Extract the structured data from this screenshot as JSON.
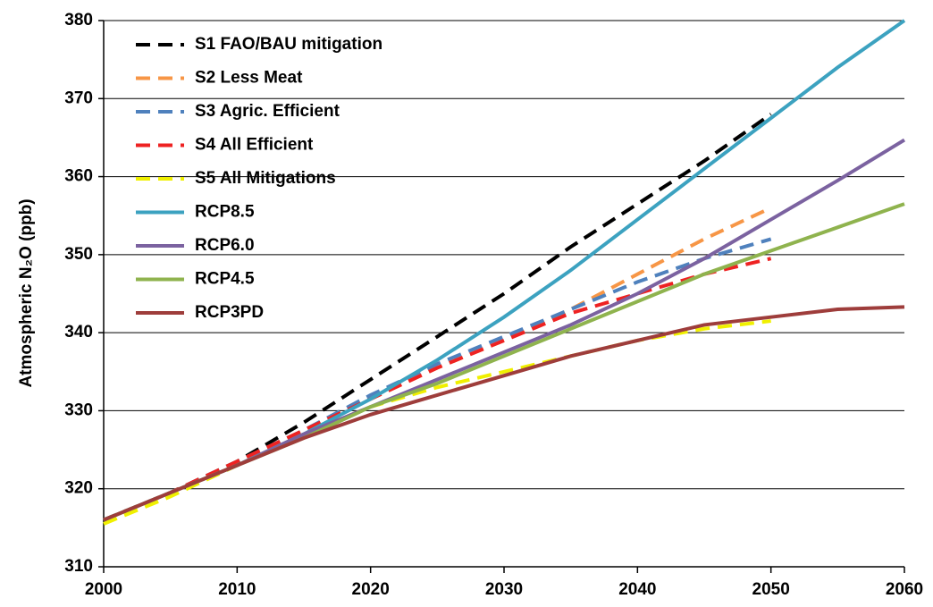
{
  "chart_data": {
    "type": "line",
    "y_label": "Atmospheric N₂O (ppb)",
    "x": [
      2000,
      2005,
      2010,
      2015,
      2020,
      2025,
      2030,
      2035,
      2040,
      2045,
      2050,
      2055,
      2060
    ],
    "xlim": [
      2000,
      2060
    ],
    "xticks": [
      2000,
      2010,
      2020,
      2030,
      2040,
      2050,
      2060
    ],
    "ylim": [
      310,
      380
    ],
    "yticks": [
      310,
      320,
      330,
      340,
      350,
      360,
      370,
      380
    ],
    "grid": true,
    "legend": "upper left",
    "series": [
      {
        "name": "S1 FAO/BAU mitigation",
        "color": "#000000",
        "dashed": true,
        "values": [
          316,
          319.5,
          323.5,
          328.5,
          334,
          339.5,
          345,
          351,
          356.5,
          362,
          368,
          null,
          null
        ]
      },
      {
        "name": "S2 Less Meat",
        "color": "#f79646",
        "dashed": true,
        "values": [
          316,
          319.5,
          323.5,
          327.5,
          331.5,
          335.5,
          339,
          343,
          347.5,
          352,
          356,
          null,
          null
        ]
      },
      {
        "name": "S3 Agric. Efficient",
        "color": "#4f81bd",
        "dashed": true,
        "values": [
          316,
          319.5,
          323.5,
          327.5,
          332,
          336,
          339.5,
          343,
          346.5,
          349.5,
          352,
          null,
          null
        ]
      },
      {
        "name": "S4 All Efficient",
        "color": "#ee2222",
        "dashed": true,
        "values": [
          316,
          319.5,
          323.5,
          327.5,
          331.5,
          335.5,
          339,
          342.5,
          345,
          347.5,
          349.5,
          null,
          null
        ]
      },
      {
        "name": "S5 All Mitigations",
        "color": "#f0f000",
        "dashed": true,
        "values": [
          315.5,
          319,
          323,
          327,
          330.5,
          333,
          335,
          337,
          339,
          340.5,
          341.5,
          null,
          null
        ]
      },
      {
        "name": "RCP8.5",
        "color": "#3ca2c0",
        "dashed": false,
        "values": [
          316,
          319.5,
          323,
          327,
          331.5,
          336.5,
          342,
          348,
          354.5,
          361,
          367.5,
          374,
          380
        ]
      },
      {
        "name": "RCP6.0",
        "color": "#7b62a0",
        "dashed": false,
        "values": [
          316,
          319.5,
          323,
          327,
          330.5,
          334,
          337.5,
          341,
          345,
          349.5,
          354.5,
          359.5,
          364.7
        ]
      },
      {
        "name": "RCP4.5",
        "color": "#8fb34e",
        "dashed": false,
        "values": [
          316,
          319.5,
          323,
          326.5,
          330.5,
          333.5,
          337,
          340.5,
          344,
          347.5,
          350.5,
          353.5,
          356.5
        ]
      },
      {
        "name": "RCP3PD",
        "color": "#9e3d3b",
        "dashed": false,
        "values": [
          316,
          319.5,
          323,
          326.5,
          329.5,
          332,
          334.5,
          337,
          339,
          341,
          342,
          343,
          343.3
        ]
      }
    ]
  }
}
